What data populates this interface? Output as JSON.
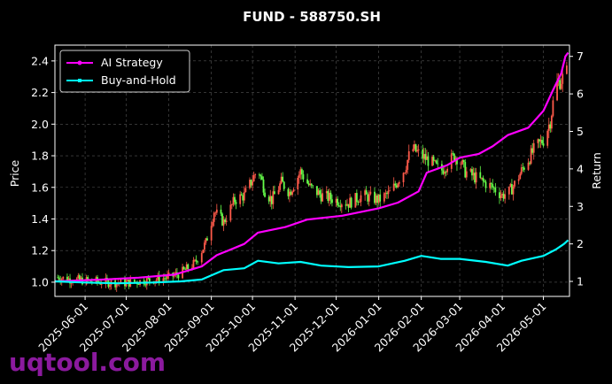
{
  "chart_data": {
    "type": "line",
    "title": "FUND - 588750.SH",
    "ylabel": "Price",
    "y2label": "Return",
    "ylim": [
      0.91,
      2.5
    ],
    "y2lim": [
      0.6,
      7.3
    ],
    "yticks": [
      "1.0",
      "1.2",
      "1.4",
      "1.6",
      "1.8",
      "2.0",
      "2.2",
      "2.4"
    ],
    "y2ticks": [
      "1",
      "2",
      "3",
      "4",
      "5",
      "6",
      "7"
    ],
    "xlim": [
      "2025-05-10",
      "2026-05-20"
    ],
    "xticks": [
      "2025-06-01",
      "2025-07-01",
      "2025-08-01",
      "2025-09-01",
      "2025-10-01",
      "2025-11-01",
      "2025-12-01",
      "2026-01-01",
      "2026-02-01",
      "2026-03-01",
      "2026-04-01",
      "2026-05-01"
    ],
    "grid": true,
    "legend_position": "top-left",
    "colors": {
      "background": "#000000",
      "candle_up": "#ff5a4a",
      "candle_down": "#66ff4a",
      "grid": "#555555"
    },
    "price_path": [
      [
        "2025-05-12",
        1.03
      ],
      [
        "2025-05-20",
        1.02
      ],
      [
        "2025-06-01",
        1.01
      ],
      [
        "2025-06-15",
        1.0
      ],
      [
        "2025-07-01",
        0.995
      ],
      [
        "2025-07-15",
        1.01
      ],
      [
        "2025-08-01",
        1.03
      ],
      [
        "2025-08-10",
        1.06
      ],
      [
        "2025-08-20",
        1.12
      ],
      [
        "2025-08-28",
        1.25
      ],
      [
        "2025-09-03",
        1.45
      ],
      [
        "2025-09-10",
        1.38
      ],
      [
        "2025-09-18",
        1.52
      ],
      [
        "2025-09-25",
        1.55
      ],
      [
        "2025-10-01",
        1.65
      ],
      [
        "2025-10-05",
        1.72
      ],
      [
        "2025-10-10",
        1.58
      ],
      [
        "2025-10-15",
        1.52
      ],
      [
        "2025-10-22",
        1.63
      ],
      [
        "2025-10-28",
        1.57
      ],
      [
        "2025-11-05",
        1.7
      ],
      [
        "2025-11-12",
        1.6
      ],
      [
        "2025-11-20",
        1.55
      ],
      [
        "2025-12-01",
        1.52
      ],
      [
        "2025-12-10",
        1.5
      ],
      [
        "2025-12-20",
        1.55
      ],
      [
        "2026-01-01",
        1.52
      ],
      [
        "2026-01-10",
        1.57
      ],
      [
        "2026-01-20",
        1.72
      ],
      [
        "2026-01-25",
        1.85
      ],
      [
        "2026-02-01",
        1.8
      ],
      [
        "2026-02-08",
        1.76
      ],
      [
        "2026-02-15",
        1.7
      ],
      [
        "2026-02-25",
        1.8
      ],
      [
        "2026-03-01",
        1.78
      ],
      [
        "2026-03-05",
        1.7
      ],
      [
        "2026-03-15",
        1.65
      ],
      [
        "2026-03-25",
        1.6
      ],
      [
        "2026-04-01",
        1.55
      ],
      [
        "2026-04-06",
        1.57
      ],
      [
        "2026-04-10",
        1.62
      ],
      [
        "2026-04-16",
        1.72
      ],
      [
        "2026-04-25",
        1.85
      ],
      [
        "2026-05-01",
        1.9
      ],
      [
        "2026-05-06",
        2.02
      ],
      [
        "2026-05-10",
        2.25
      ],
      [
        "2026-05-14",
        2.28
      ],
      [
        "2026-05-18",
        2.33
      ]
    ],
    "series": [
      {
        "name": "AI Strategy",
        "color": "#ff00ff",
        "axis": "right",
        "points": [
          [
            "2025-05-10",
            1.0
          ],
          [
            "2025-06-15",
            1.05
          ],
          [
            "2025-07-10",
            1.1
          ],
          [
            "2025-08-05",
            1.18
          ],
          [
            "2025-08-25",
            1.4
          ],
          [
            "2025-09-05",
            1.7
          ],
          [
            "2025-09-25",
            2.0
          ],
          [
            "2025-10-05",
            2.3
          ],
          [
            "2025-10-25",
            2.45
          ],
          [
            "2025-11-10",
            2.65
          ],
          [
            "2025-12-05",
            2.75
          ],
          [
            "2026-01-01",
            2.95
          ],
          [
            "2026-01-15",
            3.1
          ],
          [
            "2026-01-30",
            3.4
          ],
          [
            "2026-02-05",
            3.9
          ],
          [
            "2026-02-20",
            4.1
          ],
          [
            "2026-03-01",
            4.3
          ],
          [
            "2026-03-15",
            4.4
          ],
          [
            "2026-03-25",
            4.6
          ],
          [
            "2026-04-05",
            4.9
          ],
          [
            "2026-04-20",
            5.1
          ],
          [
            "2026-05-01",
            5.55
          ],
          [
            "2026-05-08",
            6.1
          ],
          [
            "2026-05-14",
            6.55
          ],
          [
            "2026-05-17",
            7.0
          ],
          [
            "2026-05-19",
            7.1
          ]
        ]
      },
      {
        "name": "Buy-and-Hold",
        "color": "#00ffff",
        "axis": "right",
        "points": [
          [
            "2025-05-10",
            1.0
          ],
          [
            "2025-06-01",
            0.97
          ],
          [
            "2025-06-25",
            0.95
          ],
          [
            "2025-07-20",
            0.97
          ],
          [
            "2025-08-10",
            1.0
          ],
          [
            "2025-08-25",
            1.05
          ],
          [
            "2025-09-10",
            1.3
          ],
          [
            "2025-09-25",
            1.35
          ],
          [
            "2025-10-05",
            1.55
          ],
          [
            "2025-10-20",
            1.48
          ],
          [
            "2025-11-05",
            1.52
          ],
          [
            "2025-11-20",
            1.42
          ],
          [
            "2025-12-10",
            1.38
          ],
          [
            "2026-01-01",
            1.4
          ],
          [
            "2026-01-20",
            1.55
          ],
          [
            "2026-02-01",
            1.68
          ],
          [
            "2026-02-15",
            1.6
          ],
          [
            "2026-03-01",
            1.6
          ],
          [
            "2026-03-20",
            1.52
          ],
          [
            "2026-04-05",
            1.42
          ],
          [
            "2026-04-15",
            1.55
          ],
          [
            "2026-05-01",
            1.68
          ],
          [
            "2026-05-10",
            1.85
          ],
          [
            "2026-05-16",
            2.0
          ],
          [
            "2026-05-19",
            2.1
          ]
        ]
      }
    ]
  },
  "watermark": "uqtool.com"
}
